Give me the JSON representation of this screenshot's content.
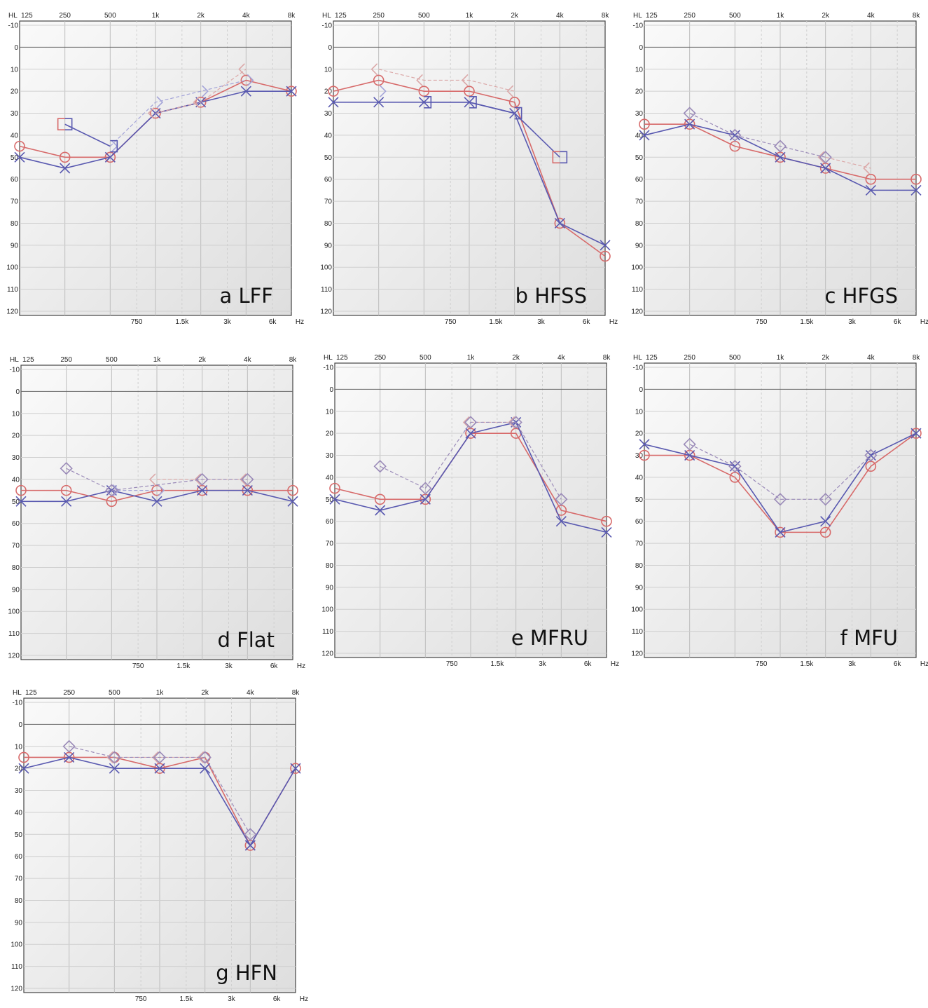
{
  "chart_data": [
    {
      "id": "a",
      "type": "line",
      "title": "a LFF",
      "x_ticks_top": [
        "HL",
        "125",
        "250",
        "500",
        "1k",
        "2k",
        "4k",
        "8k"
      ],
      "x_ticks_bottom": [
        "750",
        "1.5k",
        "3k",
        "6k",
        "Hz"
      ],
      "y_ticks": [
        "-10",
        "0",
        "10",
        "20",
        "30",
        "40",
        "50",
        "60",
        "70",
        "80",
        "90",
        "100",
        "110",
        "120"
      ],
      "ylim": [
        -10,
        120
      ],
      "y_inverted": true,
      "grid": true,
      "series": [
        {
          "ear": "right",
          "test": "air",
          "marker": "circle",
          "color": "#d76a6a",
          "x": [
            125,
            250,
            500,
            1000,
            2000,
            4000,
            8000
          ],
          "y": [
            45,
            50,
            50,
            30,
            25,
            15,
            20
          ]
        },
        {
          "ear": "left",
          "test": "air",
          "marker": "x",
          "color": "#5959b0",
          "x": [
            125,
            250,
            500,
            1000,
            2000,
            4000,
            8000
          ],
          "y": [
            50,
            55,
            50,
            30,
            25,
            20,
            20
          ]
        },
        {
          "ear": "right",
          "test": "bone",
          "marker": "<",
          "color": "#dba8a8",
          "x": [
            1000,
            2000,
            4000
          ],
          "y": [
            30,
            25,
            10
          ]
        },
        {
          "ear": "left",
          "test": "bone",
          "marker": ">",
          "color": "#a4a4d8",
          "x": [
            500,
            1000,
            2000,
            4000
          ],
          "y": [
            45,
            25,
            20,
            15
          ]
        },
        {
          "ear": "left",
          "test": "masked",
          "marker": "]",
          "color": "#5959b0",
          "x": [
            250,
            500
          ],
          "y": [
            35,
            45
          ]
        },
        {
          "ear": "right",
          "test": "masked",
          "marker": "[",
          "color": "#d76a6a",
          "x": [
            250
          ],
          "y": [
            35
          ]
        }
      ]
    },
    {
      "id": "b",
      "type": "line",
      "title": "b HFSS",
      "x_ticks_top": [
        "HL",
        "125",
        "250",
        "500",
        "1k",
        "2k",
        "4k",
        "8k"
      ],
      "x_ticks_bottom": [
        "750",
        "1.5k",
        "3k",
        "6k",
        "Hz"
      ],
      "y_ticks": [
        "-10",
        "0",
        "10",
        "20",
        "30",
        "40",
        "50",
        "60",
        "70",
        "80",
        "90",
        "100",
        "110",
        "120"
      ],
      "ylim": [
        -10,
        120
      ],
      "y_inverted": true,
      "grid": true,
      "series": [
        {
          "ear": "right",
          "test": "air",
          "marker": "circle",
          "color": "#d76a6a",
          "x": [
            125,
            250,
            500,
            1000,
            2000,
            4000,
            8000
          ],
          "y": [
            20,
            15,
            20,
            20,
            25,
            80,
            95
          ]
        },
        {
          "ear": "left",
          "test": "air",
          "marker": "x",
          "color": "#5959b0",
          "x": [
            125,
            250,
            500,
            1000,
            2000,
            4000,
            8000
          ],
          "y": [
            25,
            25,
            25,
            25,
            30,
            80,
            90
          ]
        },
        {
          "ear": "right",
          "test": "bone",
          "marker": "<",
          "color": "#dba8a8",
          "x": [
            250,
            500,
            1000,
            2000
          ],
          "y": [
            10,
            15,
            15,
            20
          ]
        },
        {
          "ear": "left",
          "test": "bone",
          "marker": ">",
          "color": "#a4a4d8",
          "x": [
            250
          ],
          "y": [
            20
          ]
        },
        {
          "ear": "left",
          "test": "masked",
          "marker": "]",
          "color": "#5959b0",
          "x": [
            500,
            1000,
            2000,
            4000
          ],
          "y": [
            25,
            25,
            30,
            50
          ]
        },
        {
          "ear": "right",
          "test": "masked",
          "marker": "[",
          "color": "#d76a6a",
          "x": [
            4000
          ],
          "y": [
            50
          ]
        }
      ]
    },
    {
      "id": "c",
      "type": "line",
      "title": "c HFGS",
      "x_ticks_top": [
        "HL",
        "125",
        "250",
        "500",
        "1k",
        "2k",
        "4k",
        "8k"
      ],
      "x_ticks_bottom": [
        "750",
        "1.5k",
        "3k",
        "6k",
        "Hz"
      ],
      "y_ticks": [
        "-10",
        "0",
        "10",
        "20",
        "30",
        "40",
        "50",
        "60",
        "70",
        "80",
        "90",
        "100",
        "110",
        "120"
      ],
      "ylim": [
        -10,
        120
      ],
      "y_inverted": true,
      "grid": true,
      "series": [
        {
          "ear": "right",
          "test": "air",
          "marker": "circle",
          "color": "#d76a6a",
          "x": [
            125,
            250,
            500,
            1000,
            2000,
            4000,
            8000
          ],
          "y": [
            35,
            35,
            45,
            50,
            55,
            60,
            60
          ]
        },
        {
          "ear": "left",
          "test": "air",
          "marker": "x",
          "color": "#5959b0",
          "x": [
            125,
            250,
            500,
            1000,
            2000,
            4000,
            8000
          ],
          "y": [
            40,
            35,
            40,
            50,
            55,
            65,
            65
          ]
        },
        {
          "ear": "right",
          "test": "bone",
          "marker": "<",
          "color": "#dba8a8",
          "x": [
            2000,
            4000
          ],
          "y": [
            50,
            55
          ]
        },
        {
          "ear": "both",
          "test": "bone",
          "marker": "diamond",
          "color": "#9a8ab8",
          "x": [
            250,
            500,
            1000,
            2000
          ],
          "y": [
            30,
            40,
            45,
            50
          ]
        }
      ]
    },
    {
      "id": "d",
      "type": "line",
      "title": "d Flat",
      "x_ticks_top": [
        "HL",
        "125",
        "250",
        "500",
        "1k",
        "2k",
        "4k",
        "8k"
      ],
      "x_ticks_bottom": [
        "750",
        "1.5k",
        "3k",
        "6k",
        "Hz"
      ],
      "y_ticks": [
        "-10",
        "0",
        "10",
        "20",
        "30",
        "40",
        "50",
        "60",
        "70",
        "80",
        "90",
        "100",
        "110",
        "120"
      ],
      "ylim": [
        -10,
        120
      ],
      "y_inverted": true,
      "grid": true,
      "series": [
        {
          "ear": "right",
          "test": "air",
          "marker": "circle",
          "color": "#d76a6a",
          "x": [
            125,
            250,
            500,
            1000,
            2000,
            4000,
            8000
          ],
          "y": [
            45,
            45,
            50,
            45,
            45,
            45,
            45
          ]
        },
        {
          "ear": "left",
          "test": "air",
          "marker": "x",
          "color": "#5959b0",
          "x": [
            125,
            250,
            500,
            1000,
            2000,
            4000,
            8000
          ],
          "y": [
            50,
            50,
            45,
            50,
            45,
            45,
            50
          ]
        },
        {
          "ear": "right",
          "test": "bone",
          "marker": "<",
          "color": "#dba8a8",
          "x": [
            1000,
            2000,
            4000
          ],
          "y": [
            40,
            40,
            40
          ]
        },
        {
          "ear": "left",
          "test": "bone",
          "marker": ">",
          "color": "#a4a4d8",
          "x": [
            500,
            1000
          ],
          "y": [
            45,
            45
          ]
        },
        {
          "ear": "both",
          "test": "bone",
          "marker": "diamond",
          "color": "#9a8ab8",
          "x": [
            250,
            500,
            2000,
            4000
          ],
          "y": [
            35,
            45,
            40,
            40
          ]
        }
      ]
    },
    {
      "id": "e",
      "type": "line",
      "title": "e MFRU",
      "x_ticks_top": [
        "HL",
        "125",
        "250",
        "500",
        "1k",
        "2k",
        "4k",
        "8k"
      ],
      "x_ticks_bottom": [
        "750",
        "1.5k",
        "3k",
        "6k",
        "Hz"
      ],
      "y_ticks": [
        "-10",
        "0",
        "10",
        "20",
        "30",
        "40",
        "50",
        "60",
        "70",
        "80",
        "90",
        "100",
        "110",
        "120"
      ],
      "ylim": [
        -10,
        120
      ],
      "y_inverted": true,
      "grid": true,
      "series": [
        {
          "ear": "right",
          "test": "air",
          "marker": "circle",
          "color": "#d76a6a",
          "x": [
            125,
            250,
            500,
            1000,
            2000,
            4000,
            8000
          ],
          "y": [
            45,
            50,
            50,
            20,
            20,
            55,
            60
          ]
        },
        {
          "ear": "left",
          "test": "air",
          "marker": "x",
          "color": "#5959b0",
          "x": [
            125,
            250,
            500,
            1000,
            2000,
            4000,
            8000
          ],
          "y": [
            50,
            55,
            50,
            20,
            15,
            60,
            65
          ]
        },
        {
          "ear": "right",
          "test": "bone",
          "marker": "<",
          "color": "#dba8a8",
          "x": [
            1000,
            2000
          ],
          "y": [
            15,
            15
          ]
        },
        {
          "ear": "both",
          "test": "bone",
          "marker": "diamond",
          "color": "#9a8ab8",
          "x": [
            250,
            500,
            1000,
            2000,
            4000
          ],
          "y": [
            35,
            45,
            15,
            15,
            50
          ]
        }
      ]
    },
    {
      "id": "f",
      "type": "line",
      "title": "f MFU",
      "x_ticks_top": [
        "HL",
        "125",
        "250",
        "500",
        "1k",
        "2k",
        "4k",
        "8k"
      ],
      "x_ticks_bottom": [
        "750",
        "1.5k",
        "3k",
        "6k",
        "Hz"
      ],
      "y_ticks": [
        "-10",
        "0",
        "10",
        "20",
        "30",
        "40",
        "50",
        "60",
        "70",
        "80",
        "90",
        "100",
        "110",
        "120"
      ],
      "ylim": [
        -10,
        120
      ],
      "y_inverted": true,
      "grid": true,
      "series": [
        {
          "ear": "right",
          "test": "air",
          "marker": "circle",
          "color": "#d76a6a",
          "x": [
            125,
            250,
            500,
            1000,
            2000,
            4000,
            8000
          ],
          "y": [
            30,
            30,
            40,
            65,
            65,
            35,
            20
          ]
        },
        {
          "ear": "left",
          "test": "air",
          "marker": "x",
          "color": "#5959b0",
          "x": [
            125,
            250,
            500,
            1000,
            2000,
            4000,
            8000
          ],
          "y": [
            25,
            30,
            35,
            65,
            60,
            30,
            20
          ]
        },
        {
          "ear": "both",
          "test": "bone",
          "marker": "diamond",
          "color": "#9a8ab8",
          "x": [
            250,
            500,
            1000,
            2000,
            4000
          ],
          "y": [
            25,
            35,
            50,
            50,
            30
          ]
        }
      ]
    },
    {
      "id": "g",
      "type": "line",
      "title": "g HFN",
      "x_ticks_top": [
        "HL",
        "125",
        "250",
        "500",
        "1k",
        "2k",
        "4k",
        "8k"
      ],
      "x_ticks_bottom": [
        "750",
        "1.5k",
        "3k",
        "6k",
        "Hz"
      ],
      "y_ticks": [
        "-10",
        "0",
        "10",
        "20",
        "30",
        "40",
        "50",
        "60",
        "70",
        "80",
        "90",
        "100",
        "110",
        "120"
      ],
      "ylim": [
        -10,
        120
      ],
      "y_inverted": true,
      "grid": true,
      "series": [
        {
          "ear": "right",
          "test": "air",
          "marker": "circle",
          "color": "#d76a6a",
          "x": [
            125,
            250,
            500,
            1000,
            2000,
            4000,
            8000
          ],
          "y": [
            15,
            15,
            15,
            20,
            15,
            55,
            20
          ]
        },
        {
          "ear": "left",
          "test": "air",
          "marker": "x",
          "color": "#5959b0",
          "x": [
            125,
            250,
            500,
            1000,
            2000,
            4000,
            8000
          ],
          "y": [
            20,
            15,
            20,
            20,
            20,
            55,
            20
          ]
        },
        {
          "ear": "right",
          "test": "bone",
          "marker": "<",
          "color": "#dba8a8",
          "x": [
            500,
            1000,
            2000
          ],
          "y": [
            15,
            15,
            15
          ]
        },
        {
          "ear": "both",
          "test": "bone",
          "marker": "diamond",
          "color": "#9a8ab8",
          "x": [
            250,
            500,
            1000,
            2000,
            4000
          ],
          "y": [
            10,
            15,
            15,
            15,
            50
          ]
        }
      ]
    }
  ]
}
